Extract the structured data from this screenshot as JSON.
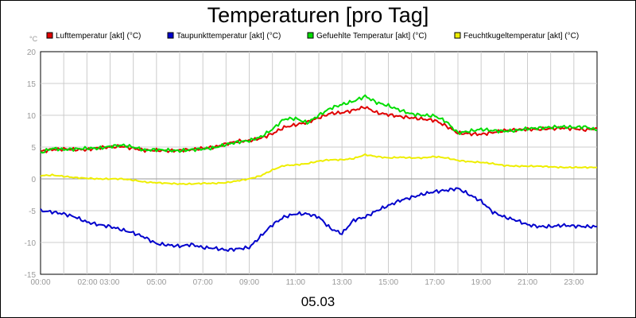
{
  "chart_data": {
    "type": "line",
    "title": "Temperaturen [pro Tag]",
    "date_label": "05.03",
    "ylabel": "°C",
    "ylim": [
      -15,
      20
    ],
    "yticks": [
      -15,
      -10,
      -5,
      0,
      5,
      10,
      15,
      20
    ],
    "xlim": [
      0,
      24
    ],
    "xticks": [
      {
        "h": 0,
        "label": "00:00"
      },
      {
        "h": 2.5,
        "label": "02:00 03:00"
      },
      {
        "h": 5,
        "label": "05:00"
      },
      {
        "h": 7,
        "label": "07:00"
      },
      {
        "h": 9,
        "label": "09:00"
      },
      {
        "h": 11,
        "label": "11:00"
      },
      {
        "h": 13,
        "label": "13:00"
      },
      {
        "h": 15,
        "label": "15:00"
      },
      {
        "h": 17,
        "label": "17:00"
      },
      {
        "h": 19,
        "label": "19:00"
      },
      {
        "h": 21,
        "label": "21:00"
      },
      {
        "h": 23,
        "label": "23:00"
      }
    ],
    "x": [
      0,
      0.5,
      1,
      1.5,
      2,
      2.5,
      3,
      3.5,
      4,
      4.5,
      5,
      5.5,
      6,
      6.5,
      7,
      7.5,
      8,
      8.5,
      9,
      9.5,
      10,
      10.5,
      11,
      11.5,
      12,
      12.5,
      13,
      13.5,
      14,
      14.5,
      15,
      15.5,
      16,
      16.5,
      17,
      17.5,
      18,
      18.5,
      19,
      19.5,
      20,
      20.5,
      21,
      21.5,
      22,
      22.5,
      23,
      23.5,
      24
    ],
    "series": [
      {
        "name": "Lufttemperatur [akt] (°C)",
        "color": "#e00000",
        "values": [
          4.3,
          4.6,
          4.7,
          4.6,
          4.6,
          4.9,
          5.0,
          5.1,
          4.8,
          4.5,
          4.5,
          4.4,
          4.5,
          4.6,
          4.8,
          5.0,
          5.5,
          5.9,
          6.0,
          6.4,
          7.1,
          8.1,
          8.5,
          8.9,
          9.6,
          10.3,
          10.4,
          10.8,
          11.3,
          10.4,
          10.1,
          9.8,
          9.6,
          9.4,
          9.2,
          8.3,
          7.2,
          7.1,
          7.0,
          7.3,
          7.6,
          7.7,
          7.8,
          7.8,
          7.9,
          8.0,
          7.9,
          7.7,
          8.0
        ]
      },
      {
        "name": "Taupunkttemperatur [akt] (°C)",
        "color": "#0000cc",
        "values": [
          -5.0,
          -5.2,
          -5.5,
          -6.0,
          -6.8,
          -7.2,
          -7.5,
          -8.0,
          -8.5,
          -9.2,
          -10.2,
          -10.4,
          -10.6,
          -10.3,
          -10.8,
          -10.9,
          -11.2,
          -11.0,
          -10.8,
          -9.0,
          -7.2,
          -6.0,
          -5.5,
          -5.5,
          -6.0,
          -7.8,
          -8.6,
          -6.5,
          -6.0,
          -5.0,
          -4.2,
          -3.4,
          -2.9,
          -2.4,
          -2.0,
          -1.8,
          -1.5,
          -2.5,
          -3.5,
          -5.2,
          -6.0,
          -6.5,
          -7.2,
          -7.5,
          -7.5,
          -7.3,
          -7.4,
          -7.5,
          -7.5
        ]
      },
      {
        "name": "Gefuehlte Temperatur [akt] (°C)",
        "color": "#00dd00",
        "values": [
          4.1,
          4.8,
          4.6,
          4.7,
          4.8,
          4.8,
          5.1,
          5.3,
          5.0,
          4.5,
          4.6,
          4.5,
          4.4,
          4.6,
          4.7,
          4.9,
          5.4,
          5.8,
          6.0,
          6.6,
          7.8,
          9.4,
          9.5,
          8.8,
          10.0,
          11.1,
          11.7,
          12.2,
          13.0,
          12.0,
          11.5,
          10.8,
          10.2,
          10.0,
          9.9,
          9.0,
          7.2,
          7.5,
          7.8,
          7.6,
          7.5,
          7.6,
          7.9,
          8.0,
          8.1,
          8.2,
          8.1,
          8.2,
          7.6
        ]
      },
      {
        "name": "Feuchtkugeltemperatur [akt] (°C)",
        "color": "#eeee00",
        "values": [
          0.5,
          0.6,
          0.4,
          0.2,
          0.1,
          0.0,
          0.0,
          0.0,
          -0.2,
          -0.5,
          -0.6,
          -0.7,
          -0.8,
          -0.8,
          -0.7,
          -0.7,
          -0.6,
          -0.3,
          0.0,
          0.5,
          1.4,
          2.1,
          2.2,
          2.4,
          2.8,
          3.0,
          3.0,
          3.2,
          3.8,
          3.5,
          3.3,
          3.4,
          3.3,
          3.3,
          3.5,
          3.3,
          2.9,
          2.7,
          2.6,
          2.4,
          2.1,
          2.0,
          2.0,
          2.0,
          1.9,
          1.8,
          1.8,
          1.8,
          1.8
        ]
      }
    ]
  }
}
